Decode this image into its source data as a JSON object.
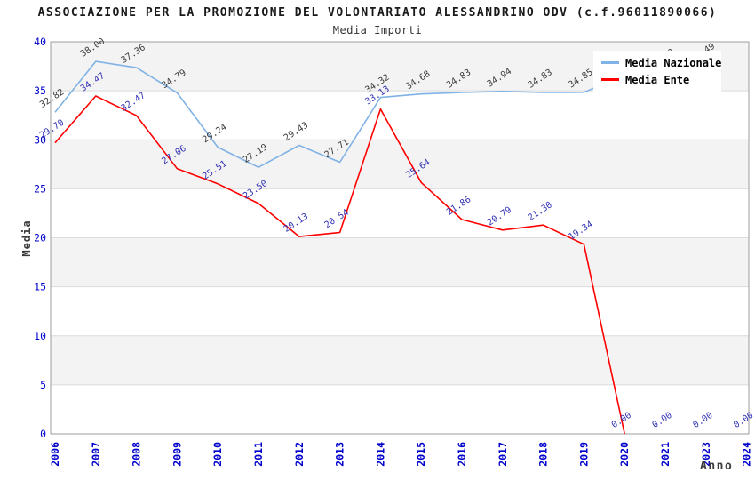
{
  "chart": {
    "title": "ASSOCIAZIONE PER LA PROMOZIONE DEL VOLONTARIATO ALESSANDRINO ODV (c.f.96011890066)",
    "subtitle": "Media Importi",
    "y_axis_title": "Media",
    "x_axis_title": "Anno"
  },
  "chart_data": {
    "type": "line",
    "title": "ASSOCIAZIONE PER LA PROMOZIONE DEL VOLONTARIATO ALESSANDRINO ODV (c.f.96011890066)",
    "subtitle": "Media Importi",
    "xlabel": "Anno",
    "ylabel": "Media",
    "ylim": [
      0,
      40
    ],
    "y_tick_step": 5,
    "grid": "horizontal-bands",
    "legend_position": "top-right",
    "tick_label_color": "#0000cc",
    "band_colors": [
      "#ffffff",
      "#f3f3f3"
    ],
    "gridline_color": "#dcdcdc",
    "border_color": "#9e9e9e",
    "categories": [
      "2006",
      "2007",
      "2008",
      "2009",
      "2010",
      "2011",
      "2012",
      "2013",
      "2014",
      "2015",
      "2016",
      "2017",
      "2018",
      "2019",
      "2020",
      "2021",
      "2023",
      "2024"
    ],
    "series": [
      {
        "name": "Media Nazionale",
        "color": "#7fb2e5",
        "label_color": "#3c3c3c",
        "values": [
          32.82,
          38.0,
          37.36,
          34.79,
          29.24,
          27.19,
          29.43,
          27.71,
          34.32,
          34.68,
          34.83,
          34.94,
          34.83,
          34.85,
          36.6,
          36.9,
          37.49,
          null
        ],
        "labels": [
          "32.82",
          "38.00",
          "37.36",
          "34.79",
          "29.24",
          "27.19",
          "29.43",
          "27.71",
          "34.32",
          "34.68",
          "34.83",
          "34.94",
          "34.83",
          "34.85",
          "36.60",
          "36.90",
          "37.49",
          ""
        ],
        "trim_trailing_zeros": false
      },
      {
        "name": "Media Ente",
        "color": "#fe0000",
        "label_color": "#3333b4",
        "values": [
          29.7,
          34.47,
          32.47,
          27.06,
          25.51,
          23.5,
          20.13,
          20.54,
          33.13,
          25.64,
          21.86,
          20.79,
          21.3,
          19.34,
          0,
          0,
          0,
          0
        ],
        "labels": [
          "29.70",
          "34.47",
          "32.47",
          "27.06",
          "25.51",
          "23.50",
          "20.13",
          "20.54",
          "33.13",
          "25.64",
          "21.86",
          "20.79",
          "21.30",
          "19.34",
          "0.00",
          "0.00",
          "0.00",
          "0.00"
        ],
        "trim_trailing_zeros": true
      }
    ]
  }
}
